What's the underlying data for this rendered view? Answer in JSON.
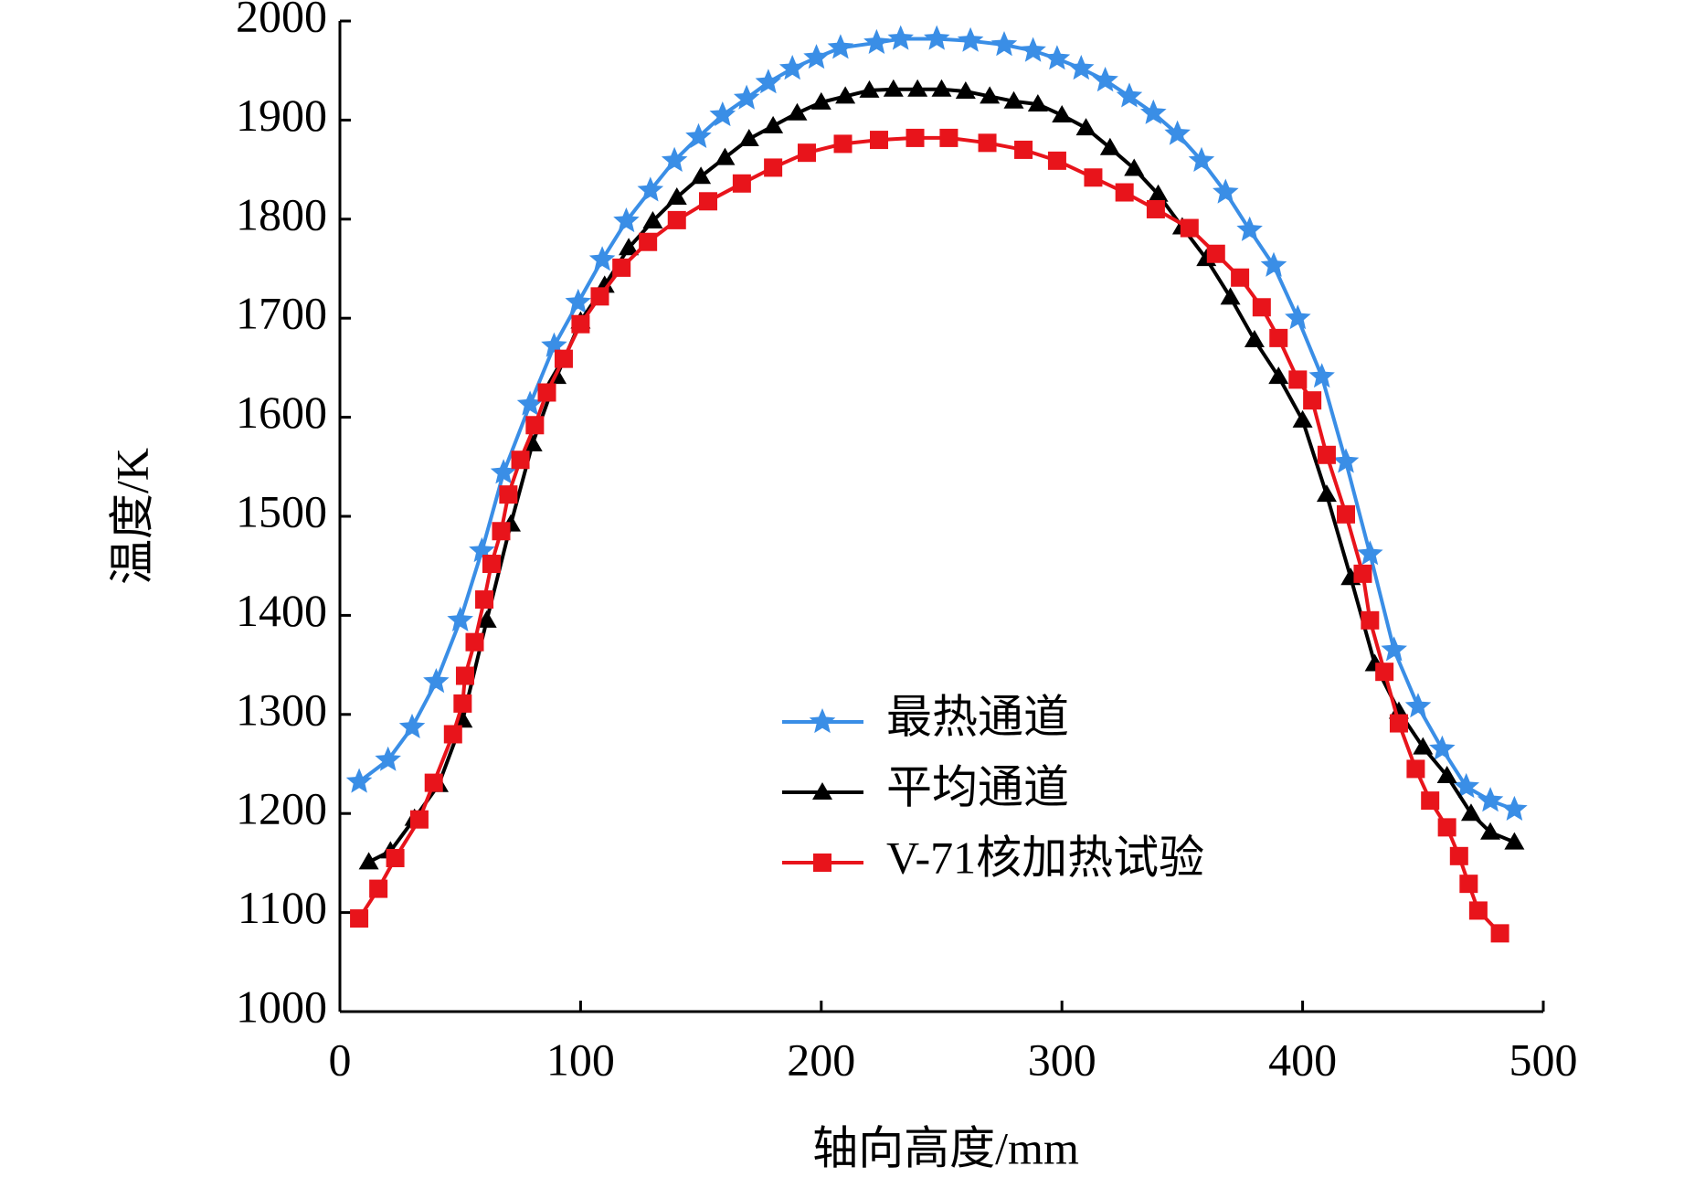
{
  "chart_data": {
    "type": "line",
    "xlabel": "轴向高度/mm",
    "ylabel": "温度/K",
    "xlim": [
      0,
      500
    ],
    "xticks": [
      0,
      100,
      200,
      300,
      400,
      500
    ],
    "ylim": [
      1000,
      2000
    ],
    "yticks": [
      1000,
      1100,
      1200,
      1300,
      1400,
      1500,
      1600,
      1700,
      1800,
      1900,
      2000
    ],
    "legend": "lower right",
    "series": [
      {
        "name": "最热通道",
        "color": "#3a8ee6",
        "marker": "star",
        "x": [
          8,
          20,
          30,
          40,
          50,
          59,
          68,
          79,
          89,
          99,
          109,
          119,
          129,
          139,
          149,
          159,
          169,
          178,
          188,
          198,
          208,
          223,
          233,
          248,
          262,
          276,
          288,
          298,
          308,
          318,
          328,
          338,
          348,
          358,
          368,
          378,
          388,
          398,
          408,
          418,
          428,
          438,
          448,
          458,
          468,
          478,
          488
        ],
        "values": [
          1232,
          1254,
          1287,
          1333,
          1395,
          1465,
          1544,
          1613,
          1672,
          1716,
          1759,
          1798,
          1829,
          1859,
          1883,
          1905,
          1922,
          1938,
          1952,
          1963,
          1973,
          1978,
          1982,
          1982,
          1980,
          1976,
          1970,
          1962,
          1952,
          1940,
          1924,
          1907,
          1886,
          1859,
          1827,
          1789,
          1753,
          1700,
          1641,
          1555,
          1462,
          1365,
          1308,
          1265,
          1227,
          1213,
          1204
        ]
      },
      {
        "name": "平均通道",
        "color": "#000000",
        "marker": "triangle",
        "x": [
          12,
          21,
          31,
          41,
          51,
          61,
          71,
          80,
          90,
          100,
          110,
          120,
          130,
          140,
          150,
          160,
          170,
          180,
          190,
          200,
          210,
          220,
          230,
          240,
          250,
          260,
          270,
          280,
          290,
          300,
          310,
          320,
          330,
          340,
          350,
          360,
          370,
          380,
          390,
          400,
          410,
          420,
          430,
          440,
          450,
          460,
          470,
          478,
          488
        ],
        "values": [
          1151,
          1162,
          1195,
          1229,
          1294,
          1395,
          1492,
          1573,
          1641,
          1697,
          1733,
          1771,
          1798,
          1822,
          1843,
          1862,
          1881,
          1894,
          1907,
          1918,
          1924,
          1930,
          1931,
          1931,
          1931,
          1929,
          1924,
          1919,
          1916,
          1905,
          1892,
          1872,
          1851,
          1825,
          1792,
          1760,
          1721,
          1678,
          1641,
          1597,
          1522,
          1438,
          1351,
          1303,
          1267,
          1238,
          1200,
          1181,
          1171
        ]
      },
      {
        "name": "V-71核加热试验",
        "color": "#e8141b",
        "marker": "square",
        "x": [
          8,
          16,
          23,
          33,
          39,
          47,
          51,
          52,
          56,
          60,
          63,
          67,
          70,
          75,
          81,
          86,
          93,
          100,
          108,
          117,
          128,
          140,
          153,
          167,
          180,
          194,
          209,
          224,
          239,
          253,
          269,
          284,
          298,
          313,
          326,
          339,
          353,
          364,
          374,
          383,
          390,
          398,
          404,
          410,
          418,
          425,
          428,
          434,
          440,
          447,
          453,
          460,
          465,
          469,
          473,
          482
        ],
        "values": [
          1094,
          1124,
          1155,
          1194,
          1231,
          1280,
          1311,
          1339,
          1373,
          1416,
          1452,
          1485,
          1522,
          1557,
          1592,
          1625,
          1659,
          1694,
          1722,
          1751,
          1777,
          1799,
          1818,
          1836,
          1852,
          1867,
          1876,
          1880,
          1882,
          1882,
          1877,
          1870,
          1859,
          1842,
          1827,
          1810,
          1791,
          1765,
          1741,
          1711,
          1680,
          1638,
          1617,
          1562,
          1502,
          1442,
          1395,
          1343,
          1291,
          1245,
          1213,
          1186,
          1157,
          1129,
          1102,
          1079
        ]
      }
    ]
  }
}
